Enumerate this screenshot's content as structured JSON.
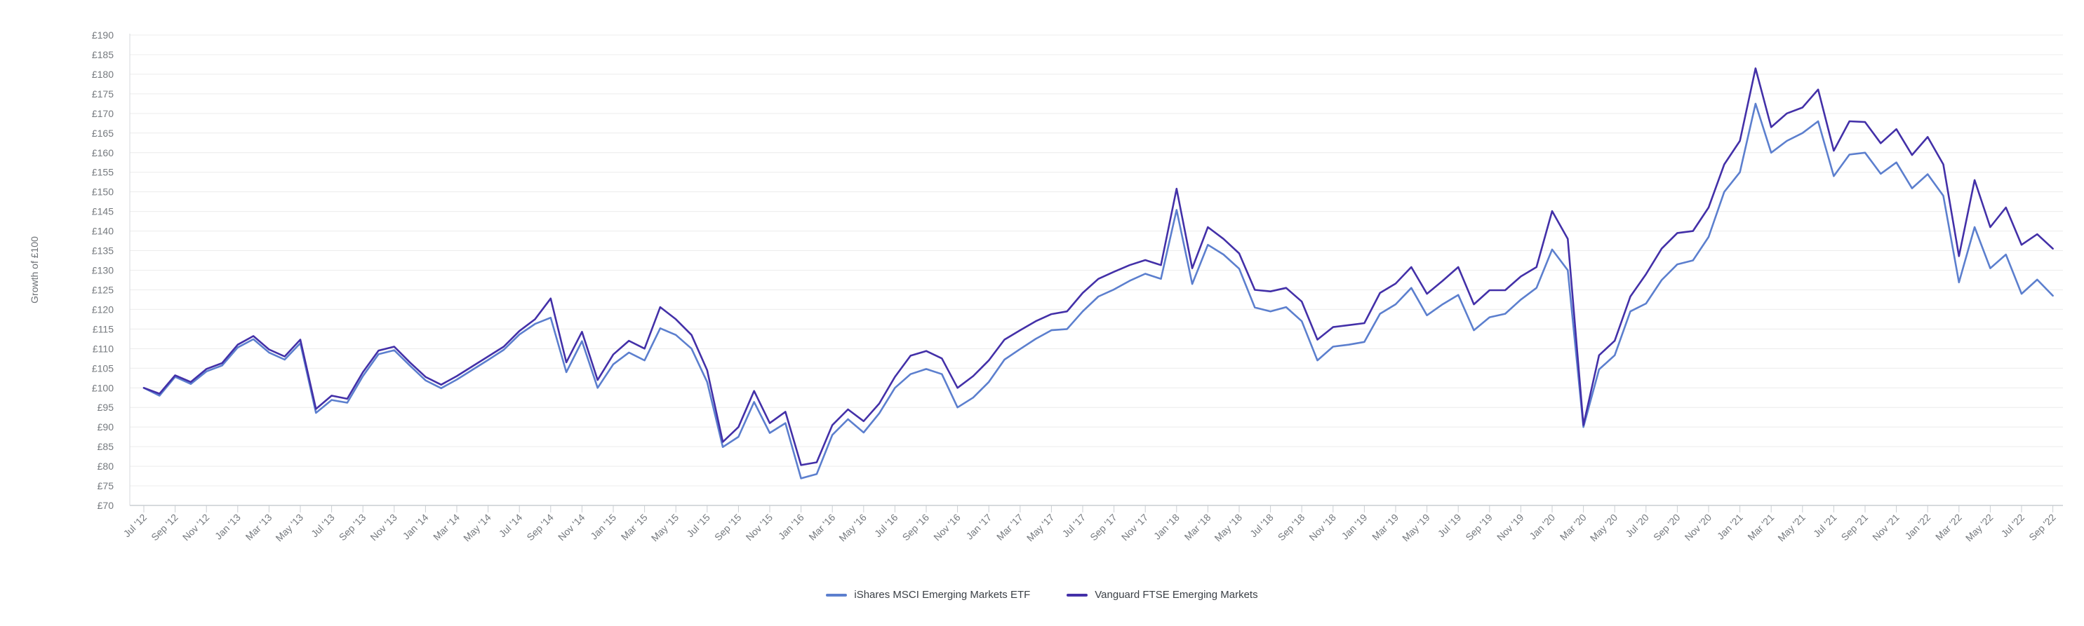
{
  "chart_data": {
    "type": "line",
    "title": "",
    "y_axis": {
      "label": "Growth of £100",
      "min": 70,
      "max": 190,
      "step": 5,
      "tick_prefix": "£"
    },
    "x_axis_tick_labels": [
      "Jul '12",
      "Sep '12",
      "Nov '12",
      "Jan '13",
      "Mar '13",
      "May '13",
      "Jul '13",
      "Sep '13",
      "Nov '13",
      "Jan '14",
      "Mar '14",
      "May '14",
      "Jul '14",
      "Sep '14",
      "Nov '14",
      "Jan '15",
      "Mar '15",
      "May '15",
      "Jul '15",
      "Sep '15",
      "Nov '15",
      "Jan '16",
      "Mar '16",
      "May '16",
      "Jul '16",
      "Sep '16",
      "Nov '16",
      "Jan '17",
      "Mar '17",
      "May '17",
      "Jul '17",
      "Sep '17",
      "Nov '17",
      "Jan '18",
      "Mar '18",
      "May '18",
      "Jul '18",
      "Sep '18",
      "Nov '18",
      "Jan '19",
      "Mar '19",
      "May '19",
      "Jul '19",
      "Sep '19",
      "Nov '19",
      "Jan '20",
      "Mar '20",
      "May '20",
      "Jul '20",
      "Sep '20",
      "Nov '20",
      "Jan '21",
      "Mar '21",
      "May '21",
      "Jul '21",
      "Sep '21",
      "Nov '21",
      "Jan '22",
      "Mar '22",
      "May '22",
      "Jul '22",
      "Sep '22"
    ],
    "x": [
      "Jul '12",
      "Aug '12",
      "Sep '12",
      "Oct '12",
      "Nov '12",
      "Dec '12",
      "Jan '13",
      "Feb '13",
      "Mar '13",
      "Apr '13",
      "May '13",
      "Jun '13",
      "Jul '13",
      "Aug '13",
      "Sep '13",
      "Oct '13",
      "Nov '13",
      "Dec '13",
      "Jan '14",
      "Feb '14",
      "Mar '14",
      "Apr '14",
      "May '14",
      "Jun '14",
      "Jul '14",
      "Aug '14",
      "Sep '14",
      "Oct '14",
      "Nov '14",
      "Dec '14",
      "Jan '15",
      "Feb '15",
      "Mar '15",
      "Apr '15",
      "May '15",
      "Jun '15",
      "Jul '15",
      "Aug '15",
      "Sep '15",
      "Oct '15",
      "Nov '15",
      "Dec '15",
      "Jan '16",
      "Feb '16",
      "Mar '16",
      "Apr '16",
      "May '16",
      "Jun '16",
      "Jul '16",
      "Aug '16",
      "Sep '16",
      "Oct '16",
      "Nov '16",
      "Dec '16",
      "Jan '17",
      "Feb '17",
      "Mar '17",
      "Apr '17",
      "May '17",
      "Jun '17",
      "Jul '17",
      "Aug '17",
      "Sep '17",
      "Oct '17",
      "Nov '17",
      "Dec '17",
      "Jan '18",
      "Feb '18",
      "Mar '18",
      "Apr '18",
      "May '18",
      "Jun '18",
      "Jul '18",
      "Aug '18",
      "Sep '18",
      "Oct '18",
      "Nov '18",
      "Dec '18",
      "Jan '19",
      "Feb '19",
      "Mar '19",
      "Apr '19",
      "May '19",
      "Jun '19",
      "Jul '19",
      "Aug '19",
      "Sep '19",
      "Oct '19",
      "Nov '19",
      "Dec '19",
      "Jan '20",
      "Feb '20",
      "Mar '20",
      "Apr '20",
      "May '20",
      "Jun '20",
      "Jul '20",
      "Aug '20",
      "Sep '20",
      "Oct '20",
      "Nov '20",
      "Dec '20",
      "Jan '21",
      "Feb '21",
      "Mar '21",
      "Apr '21",
      "May '21",
      "Jun '21",
      "Jul '21",
      "Aug '21",
      "Sep '21",
      "Oct '21",
      "Nov '21",
      "Dec '21",
      "Jan '22",
      "Feb '22",
      "Mar '22",
      "Apr '22",
      "May '22",
      "Jun '22",
      "Jul '22",
      "Aug '22",
      "Sep '22"
    ],
    "series": [
      {
        "name": "iShares MSCI Emerging Markets ETF",
        "color": "#5C7FCE",
        "values": [
          100.0,
          98.0,
          102.8,
          101.0,
          104.2,
          105.7,
          110.3,
          112.4,
          109.0,
          107.2,
          111.4,
          93.6,
          96.9,
          96.2,
          103.0,
          108.6,
          109.6,
          105.7,
          101.9,
          99.9,
          102.1,
          104.6,
          107.1,
          109.7,
          113.6,
          116.3,
          117.9,
          104.0,
          111.9,
          100.0,
          106.0,
          109.0,
          107.0,
          115.2,
          113.5,
          110.0,
          101.5,
          84.9,
          87.5,
          96.4,
          88.5,
          91.0,
          76.9,
          78.0,
          88.0,
          92.0,
          88.6,
          93.5,
          100.0,
          103.5,
          104.8,
          103.5,
          95.0,
          97.5,
          101.5,
          107.2,
          109.9,
          112.5,
          114.7,
          115.0,
          119.5,
          123.3,
          125.1,
          127.3,
          129.1,
          127.8,
          145.4,
          126.5,
          136.5,
          134.0,
          130.4,
          120.5,
          119.5,
          120.6,
          117.0,
          107.0,
          110.5,
          111.0,
          111.7,
          118.9,
          121.3,
          125.5,
          118.5,
          121.3,
          123.7,
          114.7,
          118.0,
          118.9,
          122.5,
          125.5,
          135.3,
          130.0,
          90.0,
          104.7,
          108.3,
          119.5,
          121.5,
          127.5,
          131.5,
          132.5,
          138.5,
          150.0,
          155.0,
          172.5,
          160.0,
          163.0,
          165.0,
          168.0,
          154.0,
          159.5,
          160.0,
          154.6,
          157.5,
          150.9,
          154.5,
          149.0,
          126.9,
          141.0,
          130.5,
          134.0,
          124.0,
          127.6,
          123.5
        ]
      },
      {
        "name": "Vanguard FTSE Emerging Markets",
        "color": "#4330A8",
        "values": [
          100.0,
          98.5,
          103.2,
          101.5,
          104.8,
          106.3,
          111.0,
          113.2,
          109.8,
          108.0,
          112.3,
          94.6,
          98.0,
          97.2,
          104.0,
          109.5,
          110.5,
          106.5,
          102.8,
          100.8,
          103.0,
          105.5,
          108.0,
          110.5,
          114.5,
          117.5,
          122.8,
          106.5,
          114.3,
          102.0,
          108.5,
          112.0,
          110.0,
          120.6,
          117.5,
          113.5,
          104.5,
          86.2,
          90.0,
          99.2,
          91.0,
          93.9,
          80.3,
          81.0,
          90.5,
          94.5,
          91.5,
          96.0,
          102.8,
          108.2,
          109.4,
          107.5,
          100.0,
          103.0,
          107.0,
          112.3,
          114.7,
          117.0,
          118.8,
          119.5,
          124.2,
          127.8,
          129.6,
          131.3,
          132.6,
          131.3,
          150.8,
          130.5,
          141.0,
          138.0,
          134.3,
          125.0,
          124.6,
          125.5,
          122.0,
          112.3,
          115.5,
          116.0,
          116.5,
          124.2,
          126.6,
          130.8,
          124.0,
          127.3,
          130.8,
          121.3,
          124.9,
          124.9,
          128.4,
          130.8,
          145.1,
          138.0,
          90.5,
          108.3,
          112.0,
          123.3,
          129.0,
          135.5,
          139.5,
          140.0,
          146.0,
          157.0,
          163.0,
          181.5,
          166.5,
          170.0,
          171.5,
          176.1,
          160.5,
          168.0,
          167.8,
          162.4,
          166.0,
          159.4,
          164.0,
          157.0,
          133.6,
          153.0,
          141.0,
          146.0,
          136.5,
          139.2,
          135.5
        ]
      }
    ],
    "legend": [
      {
        "label": "iShares MSCI Emerging Markets ETF",
        "color": "#5C7FCE"
      },
      {
        "label": "Vanguard FTSE Emerging Markets",
        "color": "#4330A8"
      }
    ],
    "layout": {
      "grid": "horizontal",
      "legend_position": "bottom-center",
      "x_label_rotation": -45,
      "gridline_color": "#ececec",
      "axis_line_color": "#c9ced2",
      "tick_label_color": "#75797e",
      "background_color": "#ffffff"
    }
  }
}
